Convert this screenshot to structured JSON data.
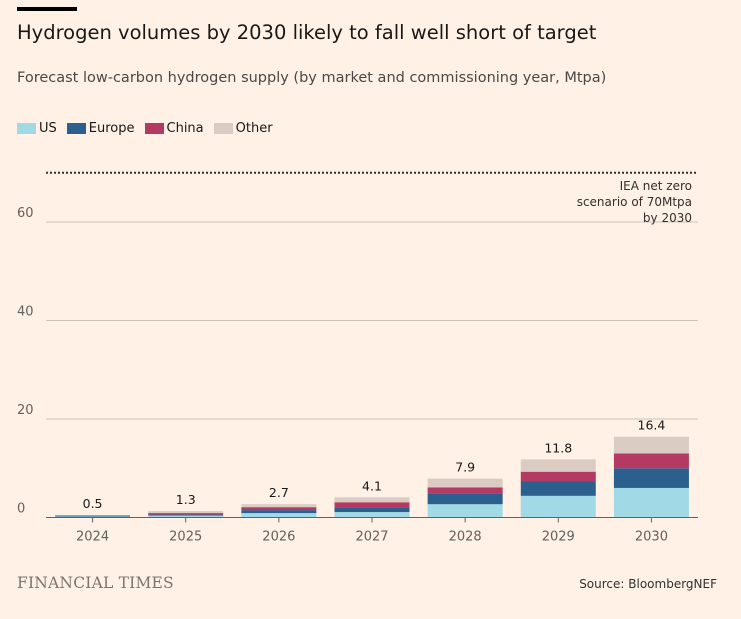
{
  "header": {
    "title": "Hydrogen volumes by 2030 likely to fall well short of target",
    "subtitle": "Forecast low-carbon hydrogen supply (by market and commissioning year, Mtpa)"
  },
  "footer": {
    "brand": "FINANCIAL TIMES",
    "source": "Source: BloombergNEF"
  },
  "colors": {
    "background": "#FFF1E5",
    "gridline": "#CCC1B7",
    "axis": "#66605C"
  },
  "chart_data": {
    "type": "bar",
    "stacked": true,
    "categories": [
      "2024",
      "2025",
      "2026",
      "2027",
      "2028",
      "2029",
      "2030"
    ],
    "series": [
      {
        "name": "US",
        "color": "#A2D9E6",
        "values": [
          0.2,
          0.4,
          0.9,
          1.1,
          2.7,
          4.4,
          6.0
        ]
      },
      {
        "name": "Europe",
        "color": "#2B5F8E",
        "values": [
          0.1,
          0.2,
          0.6,
          1.0,
          2.2,
          3.0,
          4.0
        ]
      },
      {
        "name": "China",
        "color": "#B53A63",
        "values": [
          0.1,
          0.3,
          0.6,
          1.0,
          1.2,
          1.9,
          3.0
        ]
      },
      {
        "name": "Other",
        "color": "#DACCC3",
        "values": [
          0.1,
          0.4,
          0.6,
          1.0,
          1.8,
          2.5,
          3.4
        ]
      }
    ],
    "totals": [
      "0.5",
      "1.3",
      "2.7",
      "4.1",
      "7.9",
      "11.8",
      "16.4"
    ],
    "yticks": [
      0,
      20,
      40,
      60
    ],
    "ylim": [
      0,
      70
    ],
    "xlabel": "",
    "ylabel": "",
    "grid": true,
    "legend_position": "top-left",
    "reference_line": {
      "value": 70,
      "style": "dotted",
      "label_lines": [
        "IEA net zero",
        "scenario of 70Mtpa",
        "by 2030"
      ]
    }
  }
}
